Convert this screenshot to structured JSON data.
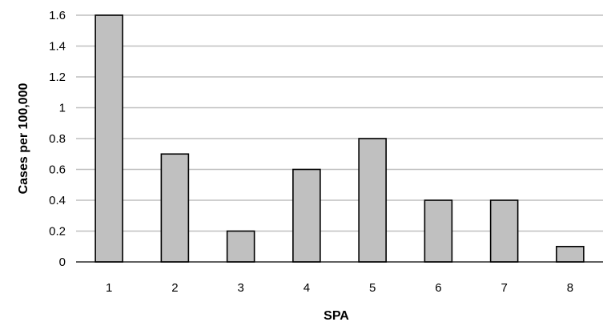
{
  "chart_data": {
    "type": "bar",
    "title": "",
    "xlabel": "SPA",
    "ylabel": "Cases per 100,000",
    "categories": [
      "1",
      "2",
      "3",
      "4",
      "5",
      "6",
      "7",
      "8"
    ],
    "values": [
      1.6,
      0.7,
      0.2,
      0.6,
      0.8,
      0.4,
      0.4,
      0.1
    ],
    "ylim": [
      0,
      1.6
    ],
    "yticks": [
      "0",
      "0.2",
      "0.4",
      "0.6",
      "0.8",
      "1",
      "1.2",
      "1.4",
      "1.6"
    ],
    "grid": true,
    "legend": "none",
    "colors": {
      "bar_fill": "#c0c0c0",
      "bar_stroke": "#000000",
      "grid": "#bfbfbf"
    }
  }
}
